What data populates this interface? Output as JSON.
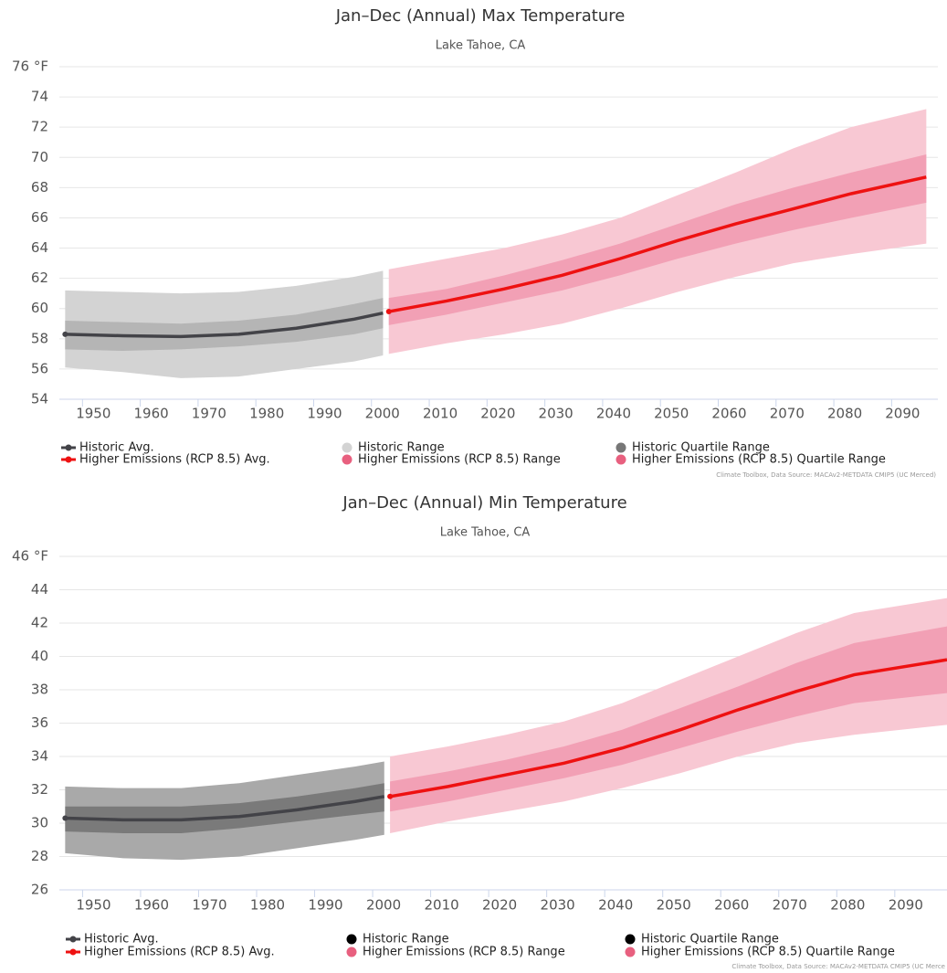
{
  "chart_data": [
    {
      "type": "line",
      "title": "Jan–Dec (Annual) Max Temperature",
      "subtitle": "Lake Tahoe, CA",
      "credit": "Climate Toolbox, Data Source: MACAv2-METDATA CMIP5 (UC Merced)",
      "xlim": [
        1946,
        2098
      ],
      "xticks": [
        1950,
        1960,
        1970,
        1980,
        1990,
        2000,
        2010,
        2020,
        2030,
        2040,
        2050,
        2060,
        2070,
        2080,
        2090
      ],
      "ylim": [
        54,
        76
      ],
      "yticks": [
        54,
        56,
        58,
        60,
        62,
        64,
        66,
        68,
        70,
        72,
        74,
        {
          "value": 76,
          "label": "76 °F"
        }
      ],
      "grid": true,
      "series": [
        {
          "name": "Historic Avg.",
          "kind": "line",
          "color": "#434348",
          "x": [
            1947,
            1957,
            1967,
            1977,
            1987,
            1997,
            2002
          ],
          "values": [
            58.3,
            58.2,
            58.15,
            58.3,
            58.7,
            59.3,
            59.7
          ]
        },
        {
          "name": "Higher Emissions (RCP 8.5) Avg.",
          "kind": "line",
          "color": "#ee1111",
          "x": [
            2003,
            2013,
            2023,
            2033,
            2043,
            2053,
            2063,
            2073,
            2083,
            2096
          ],
          "values": [
            59.8,
            60.5,
            61.3,
            62.2,
            63.3,
            64.5,
            65.6,
            66.6,
            67.6,
            68.7
          ]
        },
        {
          "name": "Historic Range",
          "kind": "band",
          "color": "#d3d3d3",
          "legend_color": "#d3d3d3",
          "x": [
            1947,
            1957,
            1967,
            1977,
            1987,
            1997,
            2002
          ],
          "low": [
            56.1,
            55.8,
            55.4,
            55.5,
            56.0,
            56.5,
            56.9
          ],
          "high": [
            61.2,
            61.1,
            61.0,
            61.1,
            61.5,
            62.1,
            62.5
          ]
        },
        {
          "name": "Higher Emissions (RCP 8.5) Range",
          "kind": "band",
          "color": "#f8c8d3",
          "legend_color": "#e8607f",
          "x": [
            2003,
            2013,
            2023,
            2033,
            2043,
            2053,
            2063,
            2073,
            2083,
            2096
          ],
          "low": [
            57.0,
            57.7,
            58.3,
            59.0,
            60.0,
            61.1,
            62.1,
            63.0,
            63.6,
            64.3
          ],
          "high": [
            62.6,
            63.3,
            64.0,
            64.9,
            66.0,
            67.5,
            69.0,
            70.6,
            72.0,
            73.2
          ]
        },
        {
          "name": "Historic Quartile Range",
          "kind": "band",
          "color": "#b5b5b5",
          "legend_color": "#777777",
          "x": [
            1947,
            1957,
            1967,
            1977,
            1987,
            1997,
            2002
          ],
          "low": [
            57.3,
            57.2,
            57.3,
            57.5,
            57.8,
            58.3,
            58.7
          ],
          "high": [
            59.2,
            59.1,
            59.0,
            59.2,
            59.6,
            60.3,
            60.7
          ]
        },
        {
          "name": "Higher Emissions (RCP 8.5) Quartile Range",
          "kind": "band",
          "color": "#f2a0b5",
          "legend_color": "#e8607f",
          "x": [
            2003,
            2013,
            2023,
            2033,
            2043,
            2053,
            2063,
            2073,
            2083,
            2096
          ],
          "low": [
            58.9,
            59.6,
            60.4,
            61.2,
            62.2,
            63.3,
            64.3,
            65.2,
            66.0,
            67.0
          ],
          "high": [
            60.7,
            61.3,
            62.2,
            63.2,
            64.3,
            65.6,
            66.9,
            68.0,
            69.0,
            70.2
          ]
        }
      ]
    },
    {
      "type": "line",
      "title": "Jan–Dec (Annual) Min Temperature",
      "subtitle": "Lake Tahoe, CA",
      "credit": "Climate Toolbox, Data Source: MACAv2-METDATA CMIP5 (UC Merce",
      "xlim": [
        1946,
        2099
      ],
      "xticks": [
        1950,
        1960,
        1970,
        1980,
        1990,
        2000,
        2010,
        2020,
        2030,
        2040,
        2050,
        2060,
        2070,
        2080,
        2090
      ],
      "ylim": [
        26,
        46
      ],
      "yticks": [
        26,
        28,
        30,
        32,
        34,
        36,
        38,
        40,
        42,
        44,
        {
          "value": 46,
          "label": "46 °F"
        }
      ],
      "grid": true,
      "series": [
        {
          "name": "Historic Avg.",
          "kind": "line",
          "color": "#434348",
          "x": [
            1947,
            1957,
            1967,
            1977,
            1987,
            1997,
            2002
          ],
          "values": [
            30.3,
            30.2,
            30.2,
            30.4,
            30.8,
            31.3,
            31.6
          ]
        },
        {
          "name": "Higher Emissions (RCP 8.5) Avg.",
          "kind": "line",
          "color": "#ee1111",
          "x": [
            2003,
            2013,
            2023,
            2033,
            2043,
            2053,
            2063,
            2073,
            2083,
            2099
          ],
          "values": [
            31.6,
            32.2,
            32.9,
            33.6,
            34.5,
            35.6,
            36.8,
            37.9,
            38.9,
            39.8
          ]
        },
        {
          "name": "Historic Range",
          "kind": "band",
          "color": "#a9a9a9",
          "legend_color": "#000000",
          "x": [
            1947,
            1957,
            1967,
            1977,
            1987,
            1997,
            2002
          ],
          "low": [
            28.2,
            27.9,
            27.8,
            28.0,
            28.5,
            29.0,
            29.3
          ],
          "high": [
            32.2,
            32.1,
            32.1,
            32.4,
            32.9,
            33.4,
            33.7
          ]
        },
        {
          "name": "Higher Emissions (RCP 8.5) Range",
          "kind": "band",
          "color": "#f8c8d3",
          "legend_color": "#e8607f",
          "x": [
            2003,
            2013,
            2023,
            2033,
            2043,
            2053,
            2063,
            2073,
            2083,
            2099
          ],
          "low": [
            29.4,
            30.1,
            30.7,
            31.3,
            32.1,
            33.0,
            34.0,
            34.8,
            35.3,
            35.9
          ],
          "high": [
            34.0,
            34.6,
            35.3,
            36.1,
            37.2,
            38.6,
            40.0,
            41.4,
            42.6,
            43.5
          ]
        },
        {
          "name": "Historic Quartile Range",
          "kind": "band",
          "color": "#7a7a7a",
          "legend_color": "#000000",
          "x": [
            1947,
            1957,
            1967,
            1977,
            1987,
            1997,
            2002
          ],
          "low": [
            29.5,
            29.4,
            29.4,
            29.7,
            30.1,
            30.5,
            30.7
          ],
          "high": [
            31.0,
            31.0,
            31.0,
            31.2,
            31.6,
            32.1,
            32.4
          ]
        },
        {
          "name": "Higher Emissions (RCP 8.5) Quartile Range",
          "kind": "band",
          "color": "#f2a0b5",
          "legend_color": "#e8607f",
          "x": [
            2003,
            2013,
            2023,
            2033,
            2043,
            2053,
            2063,
            2073,
            2083,
            2099
          ],
          "low": [
            30.7,
            31.3,
            32.0,
            32.7,
            33.5,
            34.5,
            35.5,
            36.4,
            37.2,
            37.8
          ],
          "high": [
            32.5,
            33.1,
            33.8,
            34.6,
            35.6,
            36.9,
            38.2,
            39.6,
            40.8,
            41.8
          ]
        }
      ]
    }
  ]
}
